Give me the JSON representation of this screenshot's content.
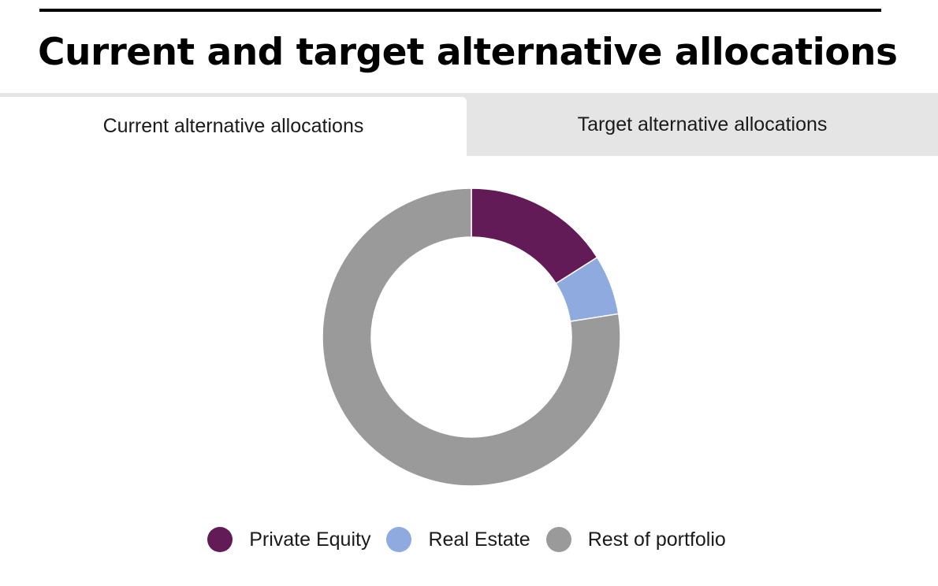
{
  "page": {
    "title": "Current and target alternative allocations"
  },
  "tabs": [
    {
      "label": "Current alternative allocations",
      "active": true
    },
    {
      "label": "Target alternative allocations",
      "active": false
    }
  ],
  "chart_data": {
    "type": "pie",
    "style": "donut",
    "title": "",
    "series": [
      {
        "name": "Private Equity",
        "value": 16,
        "color": "#621b56"
      },
      {
        "name": "Real Estate",
        "value": 6.5,
        "color": "#8eaadf"
      },
      {
        "name": "Rest of portfolio",
        "value": 77.5,
        "color": "#9a9a9a"
      }
    ],
    "start_angle_deg": 0,
    "legend": "bottom-center"
  }
}
